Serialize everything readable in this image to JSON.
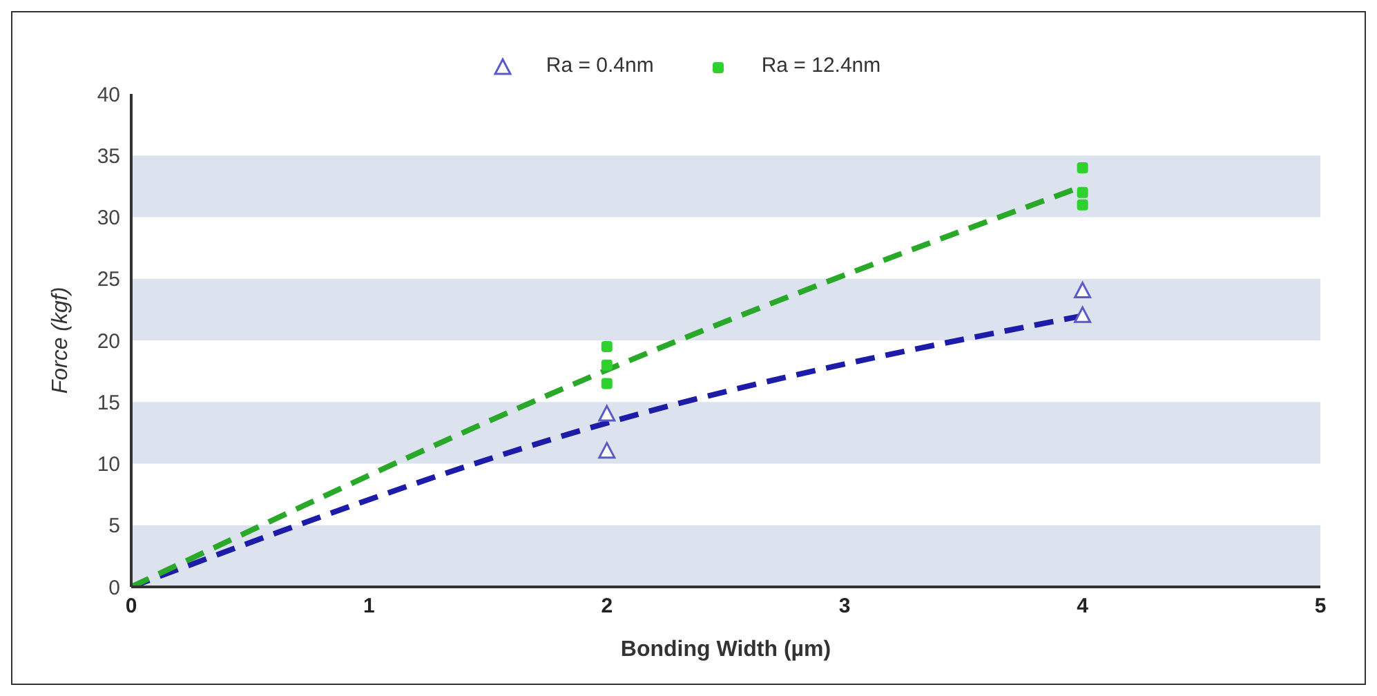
{
  "chart_data": {
    "type": "scatter",
    "xlabel": "Bonding Width (µm)",
    "ylabel": "Force (kgf)",
    "xlim": [
      0,
      5
    ],
    "xticks": [
      0,
      1,
      2,
      3,
      4,
      5
    ],
    "ylim": [
      0,
      40
    ],
    "yticks": [
      0,
      5,
      10,
      15,
      20,
      25,
      30,
      35,
      40
    ],
    "legend": "top",
    "bands": [
      {
        "axis": "y",
        "from": 0,
        "to": 5,
        "color": "#dce3ee"
      },
      {
        "axis": "y",
        "from": 10,
        "to": 15,
        "color": "#dce3ee"
      },
      {
        "axis": "y",
        "from": 20,
        "to": 25,
        "color": "#dce3ee"
      },
      {
        "axis": "y",
        "from": 30,
        "to": 35,
        "color": "#dce3ee"
      }
    ],
    "series": [
      {
        "name": "Ra = 0.4nm",
        "marker": "triangle",
        "color": "#5a5ac8",
        "x": [
          2,
          2,
          4,
          4
        ],
        "values": [
          14,
          11,
          24,
          22
        ]
      },
      {
        "name": "Ra = 12.4nm",
        "marker": "square",
        "color": "#2ed12e",
        "x": [
          2,
          2,
          2,
          4,
          4,
          4
        ],
        "values": [
          19.5,
          18,
          16.5,
          34,
          32,
          31
        ]
      },
      {
        "type": "line",
        "marker": "none",
        "line_style": "dashed",
        "color": "#1c1ca8",
        "x": [
          0,
          2,
          4
        ],
        "values": [
          0,
          13.3,
          22
        ]
      },
      {
        "type": "line",
        "marker": "none",
        "line_style": "dashed",
        "color": "#2aa82a",
        "x": [
          0,
          2,
          4
        ],
        "values": [
          0,
          17.6,
          32.5
        ]
      }
    ]
  }
}
